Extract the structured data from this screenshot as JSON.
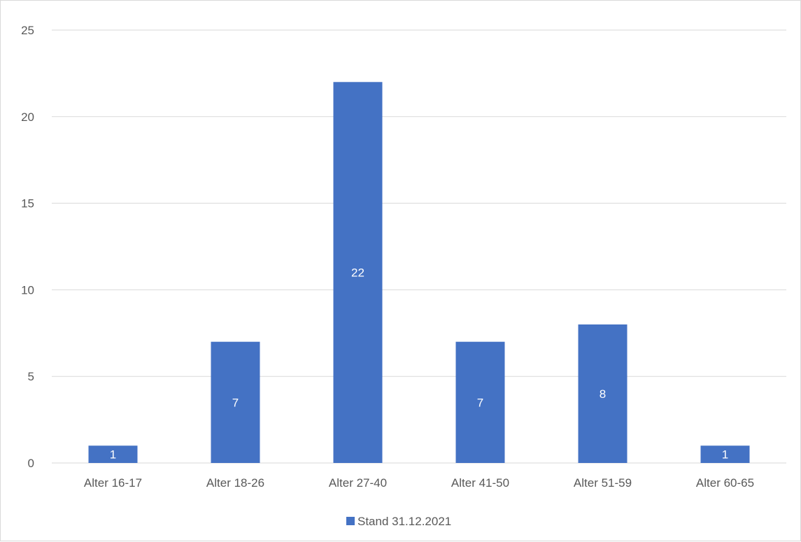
{
  "chart_data": {
    "type": "bar",
    "categories": [
      "Alter 16-17",
      "Alter 18-26",
      "Alter 27-40",
      "Alter 41-50",
      "Alter 51-59",
      "Alter 60-65"
    ],
    "series": [
      {
        "name": "Stand 31.12.2021",
        "values": [
          1,
          7,
          22,
          7,
          8,
          1
        ],
        "color": "#4472c4"
      }
    ],
    "data_labels": [
      "1",
      "7",
      "22",
      "7",
      "8",
      "1"
    ],
    "y_ticks": [
      "0",
      "5",
      "10",
      "15",
      "20",
      "25"
    ],
    "ylim": [
      0,
      25
    ],
    "grid": true,
    "legend_position": "bottom",
    "title": "",
    "xlabel": "",
    "ylabel": ""
  },
  "colors": {
    "bar": "#4472c4",
    "grid": "#d9d9d9",
    "text": "#595959",
    "label": "#ffffff"
  }
}
